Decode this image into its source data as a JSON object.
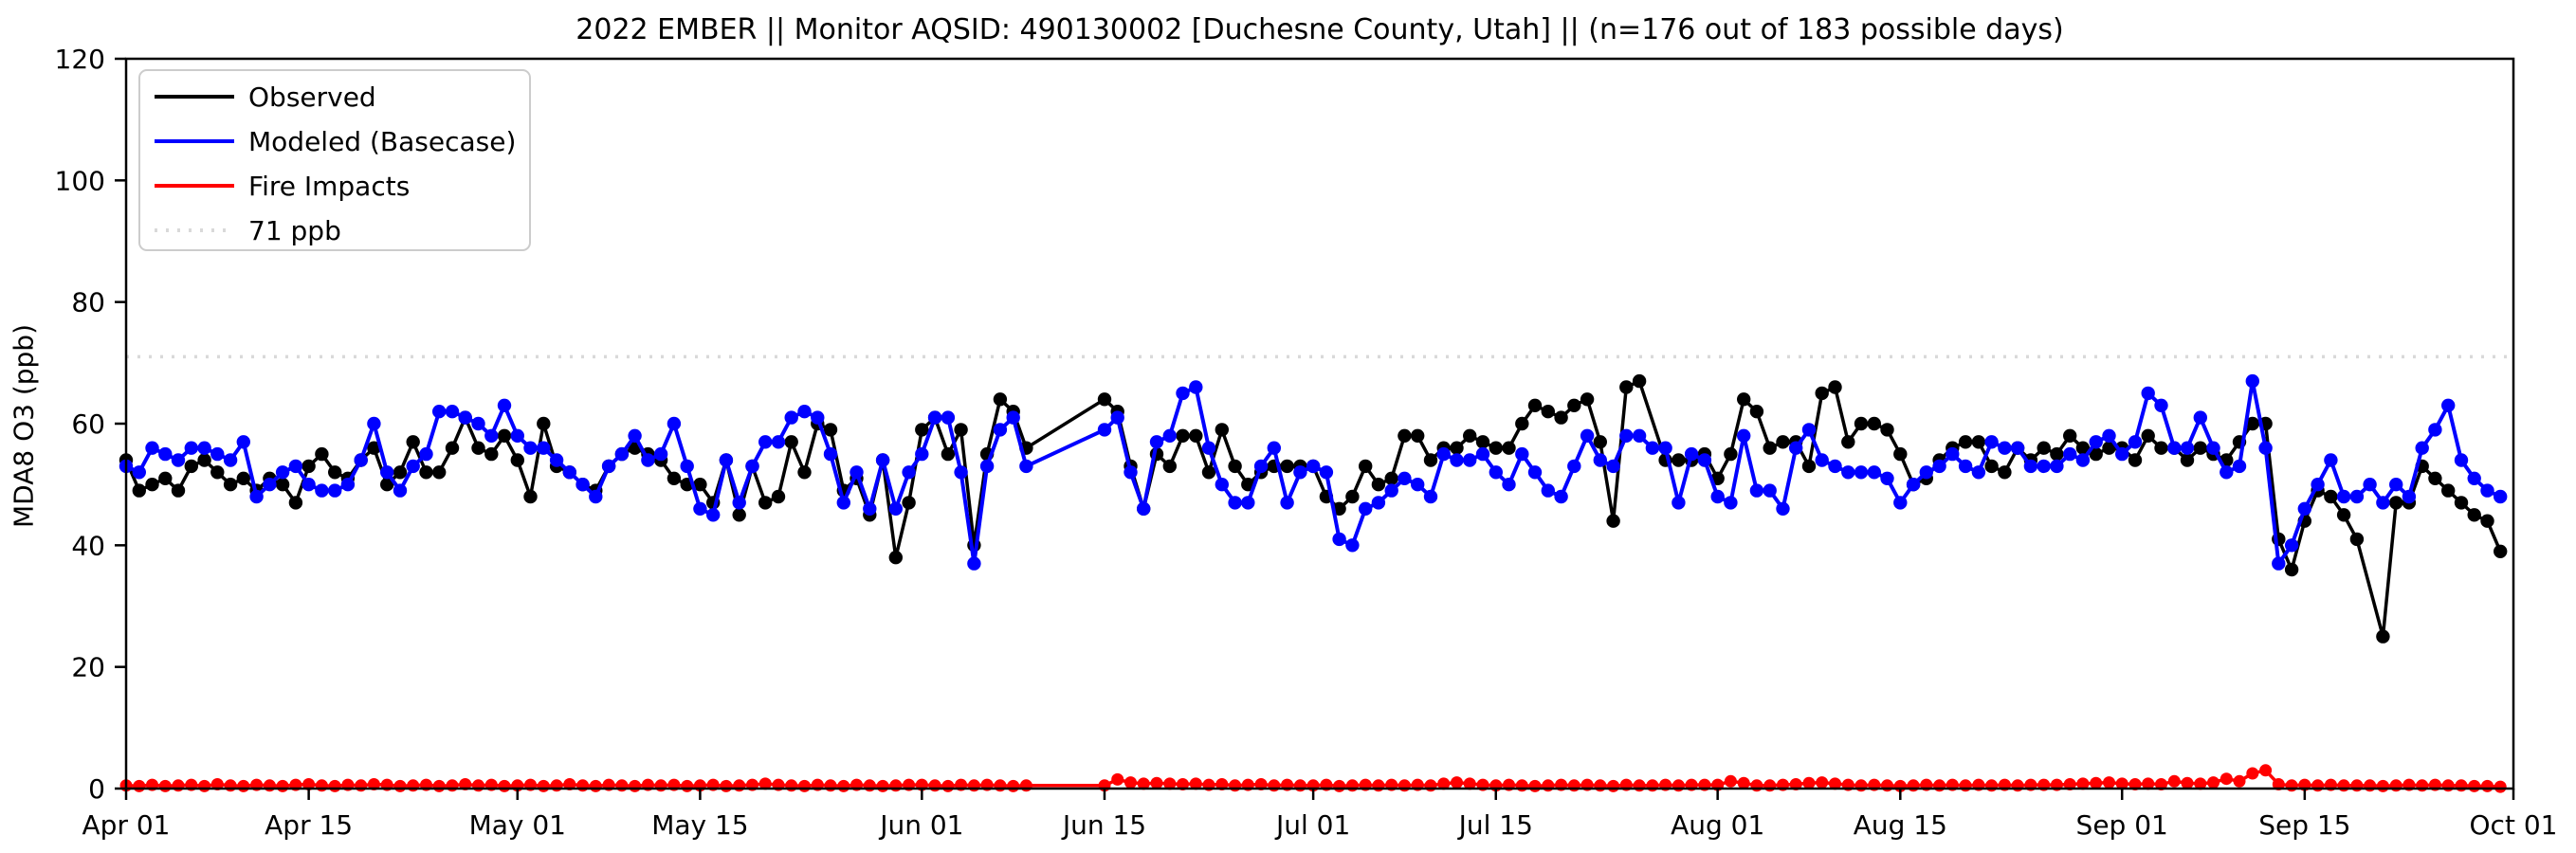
{
  "title": "2022 EMBER || Monitor AQSID: 490130002 [Duchesne County, Utah] || (n=176 out of 183 possible days)",
  "axes": {
    "ylabel": "MDA8 O3 (ppb)",
    "yticks": [
      0,
      20,
      40,
      60,
      80,
      100,
      120
    ],
    "ylim": [
      0,
      120
    ],
    "xtick_labels": [
      "Apr 01",
      "Apr 15",
      "May 01",
      "May 15",
      "Jun 01",
      "Jun 15",
      "Jul 01",
      "Jul 15",
      "Aug 01",
      "Aug 15",
      "Sep 01",
      "Sep 15",
      "Oct 01"
    ],
    "xtick_day_offsets": [
      0,
      14,
      30,
      44,
      61,
      75,
      91,
      105,
      122,
      136,
      153,
      167,
      183
    ]
  },
  "legend": [
    {
      "label": "Observed",
      "color": "#000000",
      "style": "solid"
    },
    {
      "label": "Modeled (Basecase)",
      "color": "#0000ff",
      "style": "solid"
    },
    {
      "label": "Fire Impacts",
      "color": "#ff0000",
      "style": "solid"
    },
    {
      "label": "71 ppb",
      "color": "#d9d9d9",
      "style": "dotted"
    }
  ],
  "chart_data": {
    "type": "line",
    "title": "2022 EMBER || Monitor AQSID: 490130002 [Duchesne County, Utah] || (n=176 out of 183 possible days)",
    "ylabel": "MDA8 O3 (ppb)",
    "ylim": [
      0,
      120
    ],
    "x_start": "Apr 01",
    "x_end": "Oct 01",
    "x_unit": "day",
    "n_days": 183,
    "threshold": {
      "value": 71,
      "label": "71 ppb",
      "color": "#d9d9d9"
    },
    "legend_position": "upper left",
    "grid": false,
    "series": [
      {
        "name": "Observed",
        "color": "#000000",
        "values": [
          54,
          49,
          50,
          51,
          49,
          53,
          54,
          52,
          50,
          51,
          49,
          51,
          50,
          47,
          53,
          55,
          52,
          51,
          54,
          56,
          50,
          52,
          57,
          52,
          52,
          56,
          61,
          56,
          55,
          58,
          54,
          48,
          60,
          53,
          52,
          50,
          49,
          53,
          55,
          56,
          55,
          54,
          51,
          50,
          50,
          47,
          54,
          45,
          53,
          47,
          48,
          57,
          52,
          60,
          59,
          49,
          51,
          45,
          54,
          38,
          47,
          59,
          61,
          55,
          59,
          40,
          55,
          64,
          62,
          56,
          null,
          null,
          null,
          null,
          null,
          64,
          62,
          53,
          46,
          55,
          53,
          58,
          58,
          52,
          59,
          53,
          50,
          52,
          53,
          53,
          53,
          53,
          48,
          46,
          48,
          53,
          50,
          51,
          58,
          58,
          54,
          56,
          56,
          58,
          57,
          56,
          56,
          60,
          63,
          62,
          61,
          63,
          64,
          57,
          44,
          66,
          67,
          null,
          54,
          54,
          54,
          55,
          51,
          55,
          64,
          62,
          56,
          57,
          57,
          53,
          65,
          66,
          57,
          60,
          60,
          59,
          55,
          50,
          51,
          54,
          56,
          57,
          57,
          53,
          52,
          56,
          54,
          56,
          55,
          58,
          56,
          55,
          56,
          56,
          54,
          58,
          56,
          56,
          54,
          56,
          55,
          54,
          57,
          60,
          60,
          41,
          36,
          44,
          49,
          48,
          45,
          41,
          null,
          25,
          47,
          47,
          53,
          51,
          49,
          47,
          45,
          44,
          39
        ]
      },
      {
        "name": "Modeled (Basecase)",
        "color": "#0000ff",
        "values": [
          53,
          52,
          56,
          55,
          54,
          56,
          56,
          55,
          54,
          57,
          48,
          50,
          52,
          53,
          50,
          49,
          49,
          50,
          54,
          60,
          52,
          49,
          53,
          55,
          62,
          62,
          61,
          60,
          58,
          63,
          58,
          56,
          56,
          54,
          52,
          50,
          48,
          53,
          55,
          58,
          54,
          55,
          60,
          53,
          46,
          45,
          54,
          47,
          53,
          57,
          57,
          61,
          62,
          61,
          55,
          47,
          52,
          46,
          54,
          46,
          52,
          55,
          61,
          61,
          52,
          37,
          53,
          59,
          61,
          53,
          null,
          null,
          null,
          null,
          null,
          59,
          61,
          52,
          46,
          57,
          58,
          65,
          66,
          56,
          50,
          47,
          47,
          53,
          56,
          47,
          52,
          53,
          52,
          41,
          40,
          46,
          47,
          49,
          51,
          50,
          48,
          55,
          54,
          54,
          55,
          52,
          50,
          55,
          52,
          49,
          48,
          53,
          58,
          54,
          53,
          58,
          58,
          56,
          56,
          47,
          55,
          54,
          48,
          47,
          58,
          49,
          49,
          46,
          56,
          59,
          54,
          53,
          52,
          52,
          52,
          51,
          47,
          50,
          52,
          53,
          55,
          53,
          52,
          57,
          56,
          56,
          53,
          53,
          53,
          55,
          54,
          57,
          58,
          55,
          57,
          65,
          63,
          56,
          56,
          61,
          56,
          52,
          53,
          67,
          56,
          37,
          40,
          46,
          50,
          54,
          48,
          48,
          50,
          47,
          50,
          48,
          56,
          59,
          63,
          54,
          51,
          49,
          48
        ]
      },
      {
        "name": "Fire Impacts",
        "color": "#ff0000",
        "values": [
          0.5,
          0.4,
          0.6,
          0.4,
          0.5,
          0.6,
          0.4,
          0.7,
          0.5,
          0.4,
          0.6,
          0.5,
          0.4,
          0.6,
          0.7,
          0.5,
          0.4,
          0.6,
          0.5,
          0.7,
          0.6,
          0.4,
          0.5,
          0.6,
          0.4,
          0.5,
          0.7,
          0.5,
          0.6,
          0.4,
          0.5,
          0.6,
          0.4,
          0.5,
          0.7,
          0.5,
          0.4,
          0.6,
          0.5,
          0.4,
          0.6,
          0.5,
          0.6,
          0.4,
          0.5,
          0.6,
          0.4,
          0.5,
          0.6,
          0.8,
          0.6,
          0.5,
          0.4,
          0.6,
          0.5,
          0.4,
          0.6,
          0.5,
          0.4,
          0.5,
          0.6,
          0.6,
          0.5,
          0.4,
          0.6,
          0.5,
          0.6,
          0.5,
          0.4,
          0.5,
          null,
          null,
          null,
          null,
          null,
          0.5,
          1.5,
          1.0,
          0.8,
          0.9,
          0.8,
          0.7,
          0.8,
          0.6,
          0.7,
          0.5,
          0.6,
          0.7,
          0.5,
          0.6,
          0.5,
          0.5,
          0.6,
          0.4,
          0.5,
          0.6,
          0.5,
          0.6,
          0.5,
          0.6,
          0.5,
          0.8,
          1.0,
          0.8,
          0.6,
          0.5,
          0.6,
          0.5,
          0.4,
          0.5,
          0.6,
          0.5,
          0.6,
          0.5,
          0.4,
          0.6,
          0.5,
          0.5,
          0.6,
          0.5,
          0.6,
          0.6,
          0.6,
          1.2,
          0.9,
          0.5,
          0.5,
          0.6,
          0.7,
          0.9,
          1.0,
          0.8,
          0.6,
          0.5,
          0.6,
          0.5,
          0.4,
          0.5,
          0.6,
          0.5,
          0.6,
          0.5,
          0.6,
          0.5,
          0.6,
          0.5,
          0.6,
          0.6,
          0.6,
          0.7,
          0.8,
          0.9,
          1.0,
          0.8,
          0.7,
          0.8,
          0.7,
          1.2,
          0.9,
          0.8,
          1.0,
          1.6,
          1.2,
          2.5,
          3.0,
          0.7,
          0.5,
          0.6,
          0.5,
          0.6,
          0.5,
          0.5,
          0.5,
          0.4,
          0.5,
          0.6,
          0.5,
          0.6,
          0.5,
          0.5,
          0.4,
          0.4,
          0.3
        ]
      }
    ]
  }
}
